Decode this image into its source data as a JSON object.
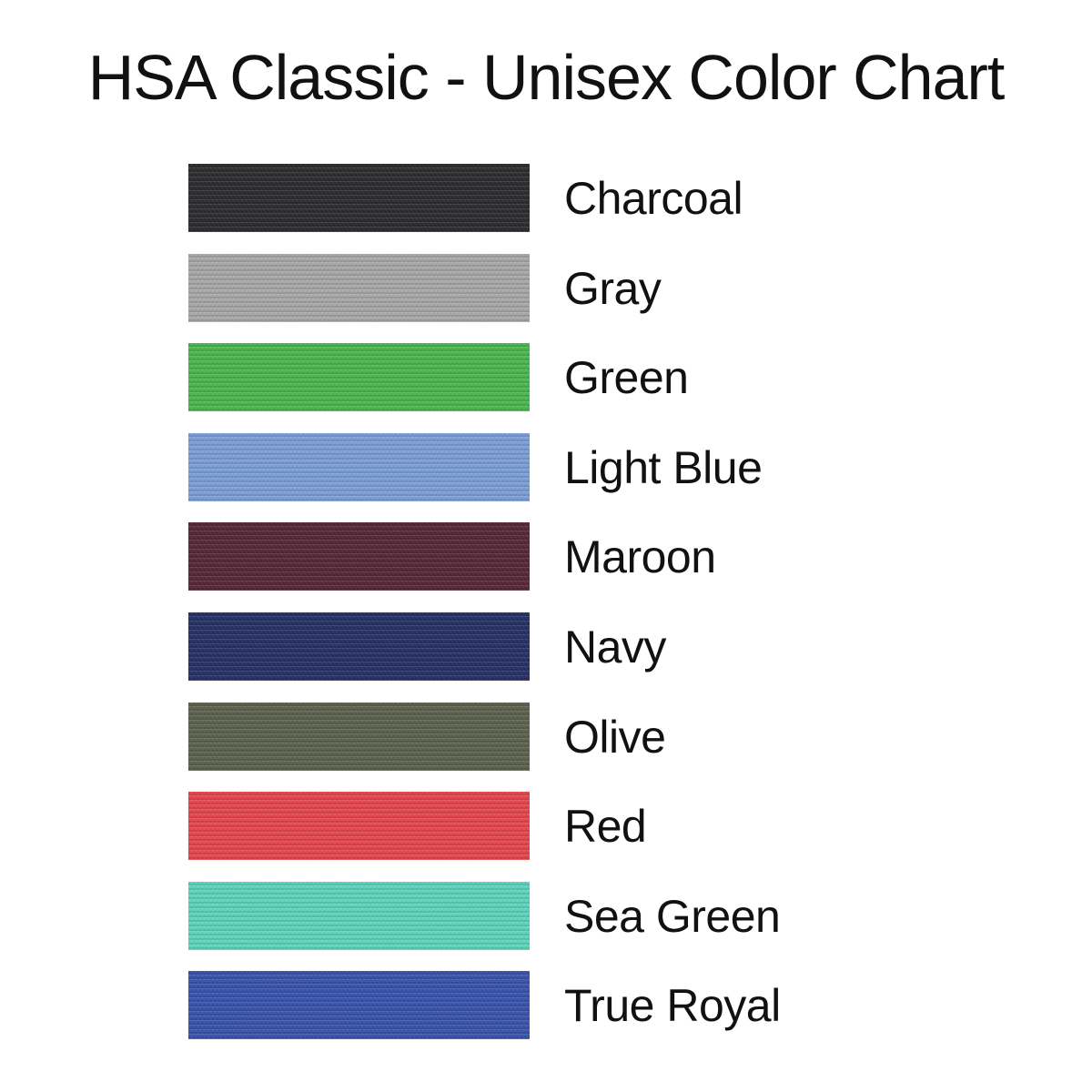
{
  "title": "HSA Classic - Unisex Color Chart",
  "colors": [
    {
      "name": "Charcoal",
      "hex": "#2e2e30"
    },
    {
      "name": "Gray",
      "hex": "#a9a9a9"
    },
    {
      "name": "Green",
      "hex": "#4cb850"
    },
    {
      "name": "Light Blue",
      "hex": "#7da0d9"
    },
    {
      "name": "Maroon",
      "hex": "#58293a"
    },
    {
      "name": "Navy",
      "hex": "#283267"
    },
    {
      "name": "Olive",
      "hex": "#5e6350"
    },
    {
      "name": "Red",
      "hex": "#e8474f"
    },
    {
      "name": "Sea Green",
      "hex": "#5fd6bc"
    },
    {
      "name": "True Royal",
      "hex": "#3a55ad"
    }
  ]
}
